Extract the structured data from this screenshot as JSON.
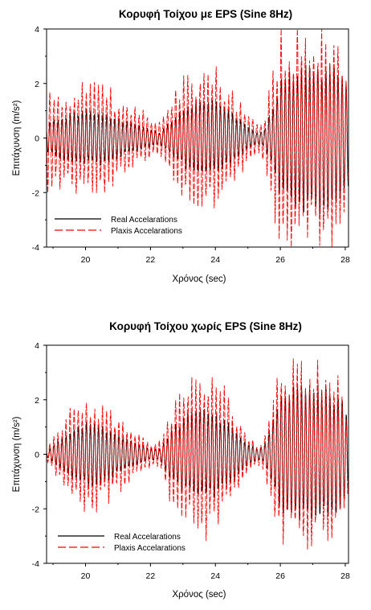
{
  "chart_data": [
    {
      "type": "line",
      "title": "Κορυφή Τοίχου με EPS (Sine 8Hz)",
      "xlabel": "Χρόνος (sec)",
      "ylabel": "Επιτάχυνση (m/s²)",
      "xlim": [
        18.8,
        28.1
      ],
      "ylim": [
        -4,
        4
      ],
      "xticks": [
        20,
        22,
        24,
        26,
        28
      ],
      "yticks": [
        -4,
        -2,
        0,
        2,
        4
      ],
      "grid": false,
      "legend_position": "bottom-left",
      "frequency_hz": 8,
      "series": [
        {
          "name": "Real Accelarations",
          "color": "#000000",
          "dash": "solid",
          "envelope": {
            "t": [
              18.8,
              19.0,
              19.5,
              20.0,
              20.5,
              21.0,
              21.5,
              22.0,
              22.3,
              22.6,
              23.0,
              23.5,
              24.0,
              24.5,
              25.0,
              25.3,
              25.5,
              25.8,
              26.0,
              26.5,
              27.0,
              27.5,
              28.0,
              28.1
            ],
            "amp": [
              0.5,
              0.6,
              0.9,
              1.0,
              0.9,
              0.7,
              0.5,
              0.3,
              0.2,
              0.6,
              1.0,
              1.4,
              1.3,
              0.9,
              0.4,
              0.2,
              0.3,
              1.2,
              2.0,
              2.4,
              2.6,
              2.6,
              2.2,
              1.6
            ]
          }
        },
        {
          "name": "Plaxis Accelarations",
          "color": "#ff0000",
          "dash": "dashed",
          "envelope": {
            "t": [
              18.8,
              19.0,
              19.5,
              20.0,
              20.5,
              21.0,
              21.5,
              22.0,
              22.3,
              22.6,
              23.0,
              23.5,
              24.0,
              24.5,
              25.0,
              25.3,
              25.5,
              25.8,
              26.0,
              26.5,
              27.0,
              27.5,
              28.0,
              28.1
            ],
            "amp": [
              1.6,
              1.5,
              1.6,
              1.7,
              1.6,
              1.3,
              1.0,
              0.7,
              0.6,
              1.2,
              1.8,
              2.2,
              2.1,
              1.5,
              0.8,
              0.5,
              0.7,
              2.3,
              3.1,
              3.3,
              3.3,
              3.5,
              2.3,
              1.6
            ]
          }
        }
      ]
    },
    {
      "type": "line",
      "title": "Κορυφή Τοίχου χωρίς EPS (Sine 8Hz)",
      "xlabel": "Χρόνος (sec)",
      "ylabel": "Επιτάχυνση (m/s²)",
      "xlim": [
        18.8,
        28.1
      ],
      "ylim": [
        -4,
        4
      ],
      "xticks": [
        20,
        22,
        24,
        26,
        28
      ],
      "yticks": [
        -4,
        -2,
        0,
        2,
        4
      ],
      "grid": false,
      "legend_position": "bottom-left",
      "frequency_hz": 8,
      "series": [
        {
          "name": "Real Accelarations",
          "color": "#000000",
          "dash": "solid",
          "envelope": {
            "t": [
              18.8,
              19.0,
              19.5,
              20.0,
              20.5,
              21.0,
              21.5,
              22.0,
              22.3,
              22.6,
              23.0,
              23.5,
              24.0,
              24.5,
              25.0,
              25.3,
              25.5,
              25.8,
              26.0,
              26.5,
              27.0,
              27.5,
              28.0,
              28.1
            ],
            "amp": [
              0.1,
              0.3,
              0.8,
              1.1,
              1.0,
              0.7,
              0.4,
              0.2,
              0.2,
              0.8,
              1.3,
              1.6,
              1.5,
              1.0,
              0.4,
              0.2,
              0.3,
              1.3,
              2.0,
              2.4,
              2.4,
              2.3,
              1.8,
              1.0
            ]
          }
        },
        {
          "name": "Plaxis Accelarations",
          "color": "#ff0000",
          "dash": "dashed",
          "envelope": {
            "t": [
              18.8,
              19.0,
              19.5,
              20.0,
              20.5,
              21.0,
              21.5,
              22.0,
              22.3,
              22.6,
              23.0,
              23.5,
              24.0,
              24.5,
              25.0,
              25.3,
              25.5,
              25.8,
              26.0,
              26.5,
              27.0,
              27.5,
              28.0,
              28.1
            ],
            "amp": [
              0.2,
              0.5,
              1.3,
              1.8,
              1.7,
              1.2,
              0.7,
              0.4,
              0.4,
              1.4,
              2.1,
              2.6,
              2.4,
              1.6,
              0.6,
              0.3,
              0.5,
              2.1,
              2.8,
              2.8,
              2.7,
              2.6,
              2.0,
              1.2
            ]
          }
        }
      ]
    }
  ]
}
